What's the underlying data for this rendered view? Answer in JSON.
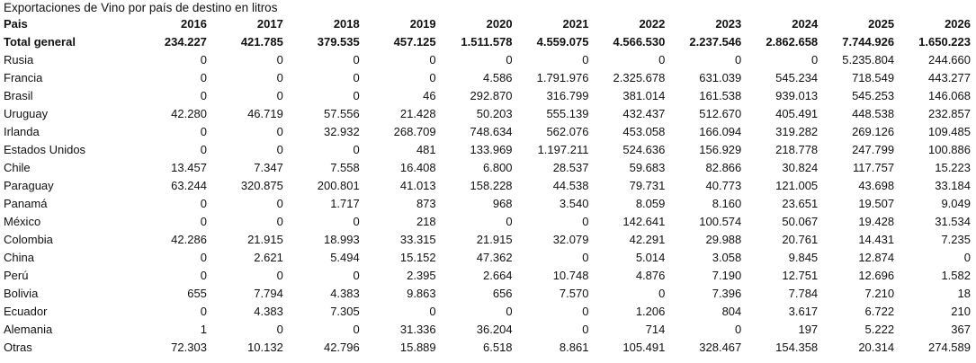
{
  "sheet": {
    "title": "Exportaciones de Vino por país de destino en litros",
    "header": {
      "country": "Pais",
      "years": [
        "2016",
        "2017",
        "2018",
        "2019",
        "2020",
        "2021",
        "2022",
        "2023",
        "2024",
        "2025",
        "2026"
      ]
    },
    "total": {
      "label": "Total general",
      "values": [
        "234.227",
        "421.785",
        "379.535",
        "457.125",
        "1.511.578",
        "4.559.075",
        "4.566.530",
        "2.237.546",
        "2.862.658",
        "7.744.926",
        "1.650.223"
      ]
    },
    "rows": [
      {
        "country": "Rusia",
        "values": [
          "0",
          "0",
          "0",
          "0",
          "0",
          "0",
          "0",
          "0",
          "0",
          "5.235.804",
          "244.660"
        ]
      },
      {
        "country": "Francia",
        "values": [
          "0",
          "0",
          "0",
          "0",
          "4.586",
          "1.791.976",
          "2.325.678",
          "631.039",
          "545.234",
          "718.549",
          "443.277"
        ]
      },
      {
        "country": "Brasil",
        "values": [
          "0",
          "0",
          "0",
          "46",
          "292.870",
          "316.799",
          "381.014",
          "161.538",
          "939.013",
          "545.253",
          "146.068"
        ]
      },
      {
        "country": "Uruguay",
        "values": [
          "42.280",
          "46.719",
          "57.556",
          "21.428",
          "50.203",
          "555.139",
          "432.437",
          "512.670",
          "405.491",
          "448.538",
          "232.857"
        ]
      },
      {
        "country": "Irlanda",
        "values": [
          "0",
          "0",
          "32.932",
          "268.709",
          "748.634",
          "562.076",
          "453.058",
          "166.094",
          "319.282",
          "269.126",
          "109.485"
        ]
      },
      {
        "country": "Estados Unidos",
        "values": [
          "0",
          "0",
          "0",
          "481",
          "133.969",
          "1.197.211",
          "524.636",
          "156.929",
          "218.778",
          "247.799",
          "100.886"
        ]
      },
      {
        "country": "Chile",
        "values": [
          "13.457",
          "7.347",
          "7.558",
          "16.408",
          "6.800",
          "28.537",
          "59.683",
          "82.866",
          "30.824",
          "117.757",
          "15.223"
        ]
      },
      {
        "country": "Paraguay",
        "values": [
          "63.244",
          "320.875",
          "200.801",
          "41.013",
          "158.228",
          "44.538",
          "79.731",
          "40.773",
          "121.005",
          "43.698",
          "33.184"
        ]
      },
      {
        "country": "Panamá",
        "values": [
          "0",
          "0",
          "1.717",
          "873",
          "968",
          "3.540",
          "8.059",
          "8.160",
          "23.651",
          "19.507",
          "9.049"
        ]
      },
      {
        "country": "México",
        "values": [
          "0",
          "0",
          "0",
          "218",
          "0",
          "0",
          "142.641",
          "100.574",
          "50.067",
          "19.428",
          "31.534"
        ]
      },
      {
        "country": "Colombia",
        "values": [
          "42.286",
          "21.915",
          "18.993",
          "33.315",
          "21.915",
          "32.079",
          "42.291",
          "29.988",
          "20.761",
          "14.431",
          "7.235"
        ]
      },
      {
        "country": "China",
        "values": [
          "0",
          "2.621",
          "5.494",
          "15.152",
          "47.362",
          "0",
          "5.014",
          "3.058",
          "9.845",
          "12.874",
          "0"
        ]
      },
      {
        "country": "Perú",
        "values": [
          "0",
          "0",
          "0",
          "2.395",
          "2.664",
          "10.748",
          "4.876",
          "7.190",
          "12.751",
          "12.696",
          "1.582"
        ]
      },
      {
        "country": "Bolivia",
        "values": [
          "655",
          "7.794",
          "4.383",
          "9.863",
          "656",
          "7.570",
          "0",
          "7.396",
          "7.784",
          "7.210",
          "18"
        ]
      },
      {
        "country": "Ecuador",
        "values": [
          "0",
          "4.383",
          "7.305",
          "0",
          "0",
          "0",
          "1.206",
          "804",
          "3.617",
          "6.722",
          "210"
        ]
      },
      {
        "country": "Alemania",
        "values": [
          "1",
          "0",
          "0",
          "31.336",
          "36.204",
          "0",
          "714",
          "0",
          "197",
          "5.222",
          "367"
        ]
      },
      {
        "country": "Otras",
        "values": [
          "72.303",
          "10.132",
          "42.796",
          "15.889",
          "6.518",
          "8.861",
          "105.491",
          "328.467",
          "154.358",
          "20.314",
          "274.589"
        ]
      }
    ]
  }
}
